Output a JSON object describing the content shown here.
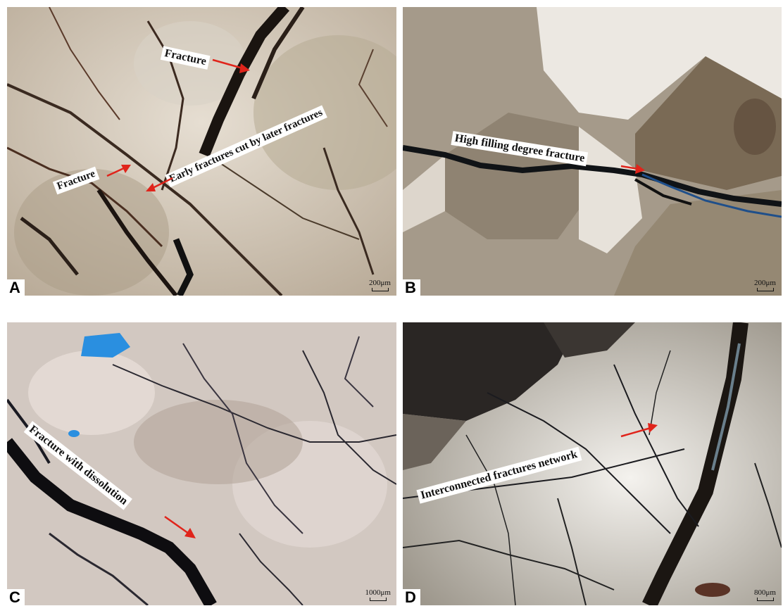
{
  "panels": [
    {
      "id": "A",
      "label": "A",
      "scale": "200μm",
      "annotations": [
        "Fracture",
        "Early fractures cut by later fractures",
        "Fracture"
      ]
    },
    {
      "id": "B",
      "label": "B",
      "scale": "200μm",
      "annotations": [
        "High filling degree fracture"
      ]
    },
    {
      "id": "C",
      "label": "C",
      "scale": "1000μm",
      "annotations": [
        "Fracture with dissolution"
      ]
    },
    {
      "id": "D",
      "label": "D",
      "scale": "800μm",
      "annotations": [
        "Interconnected fractures network"
      ]
    }
  ],
  "colors": {
    "arrow": "#e0241b",
    "fracture_fill": "#111111",
    "pore_blue": "#2a8fe0"
  }
}
